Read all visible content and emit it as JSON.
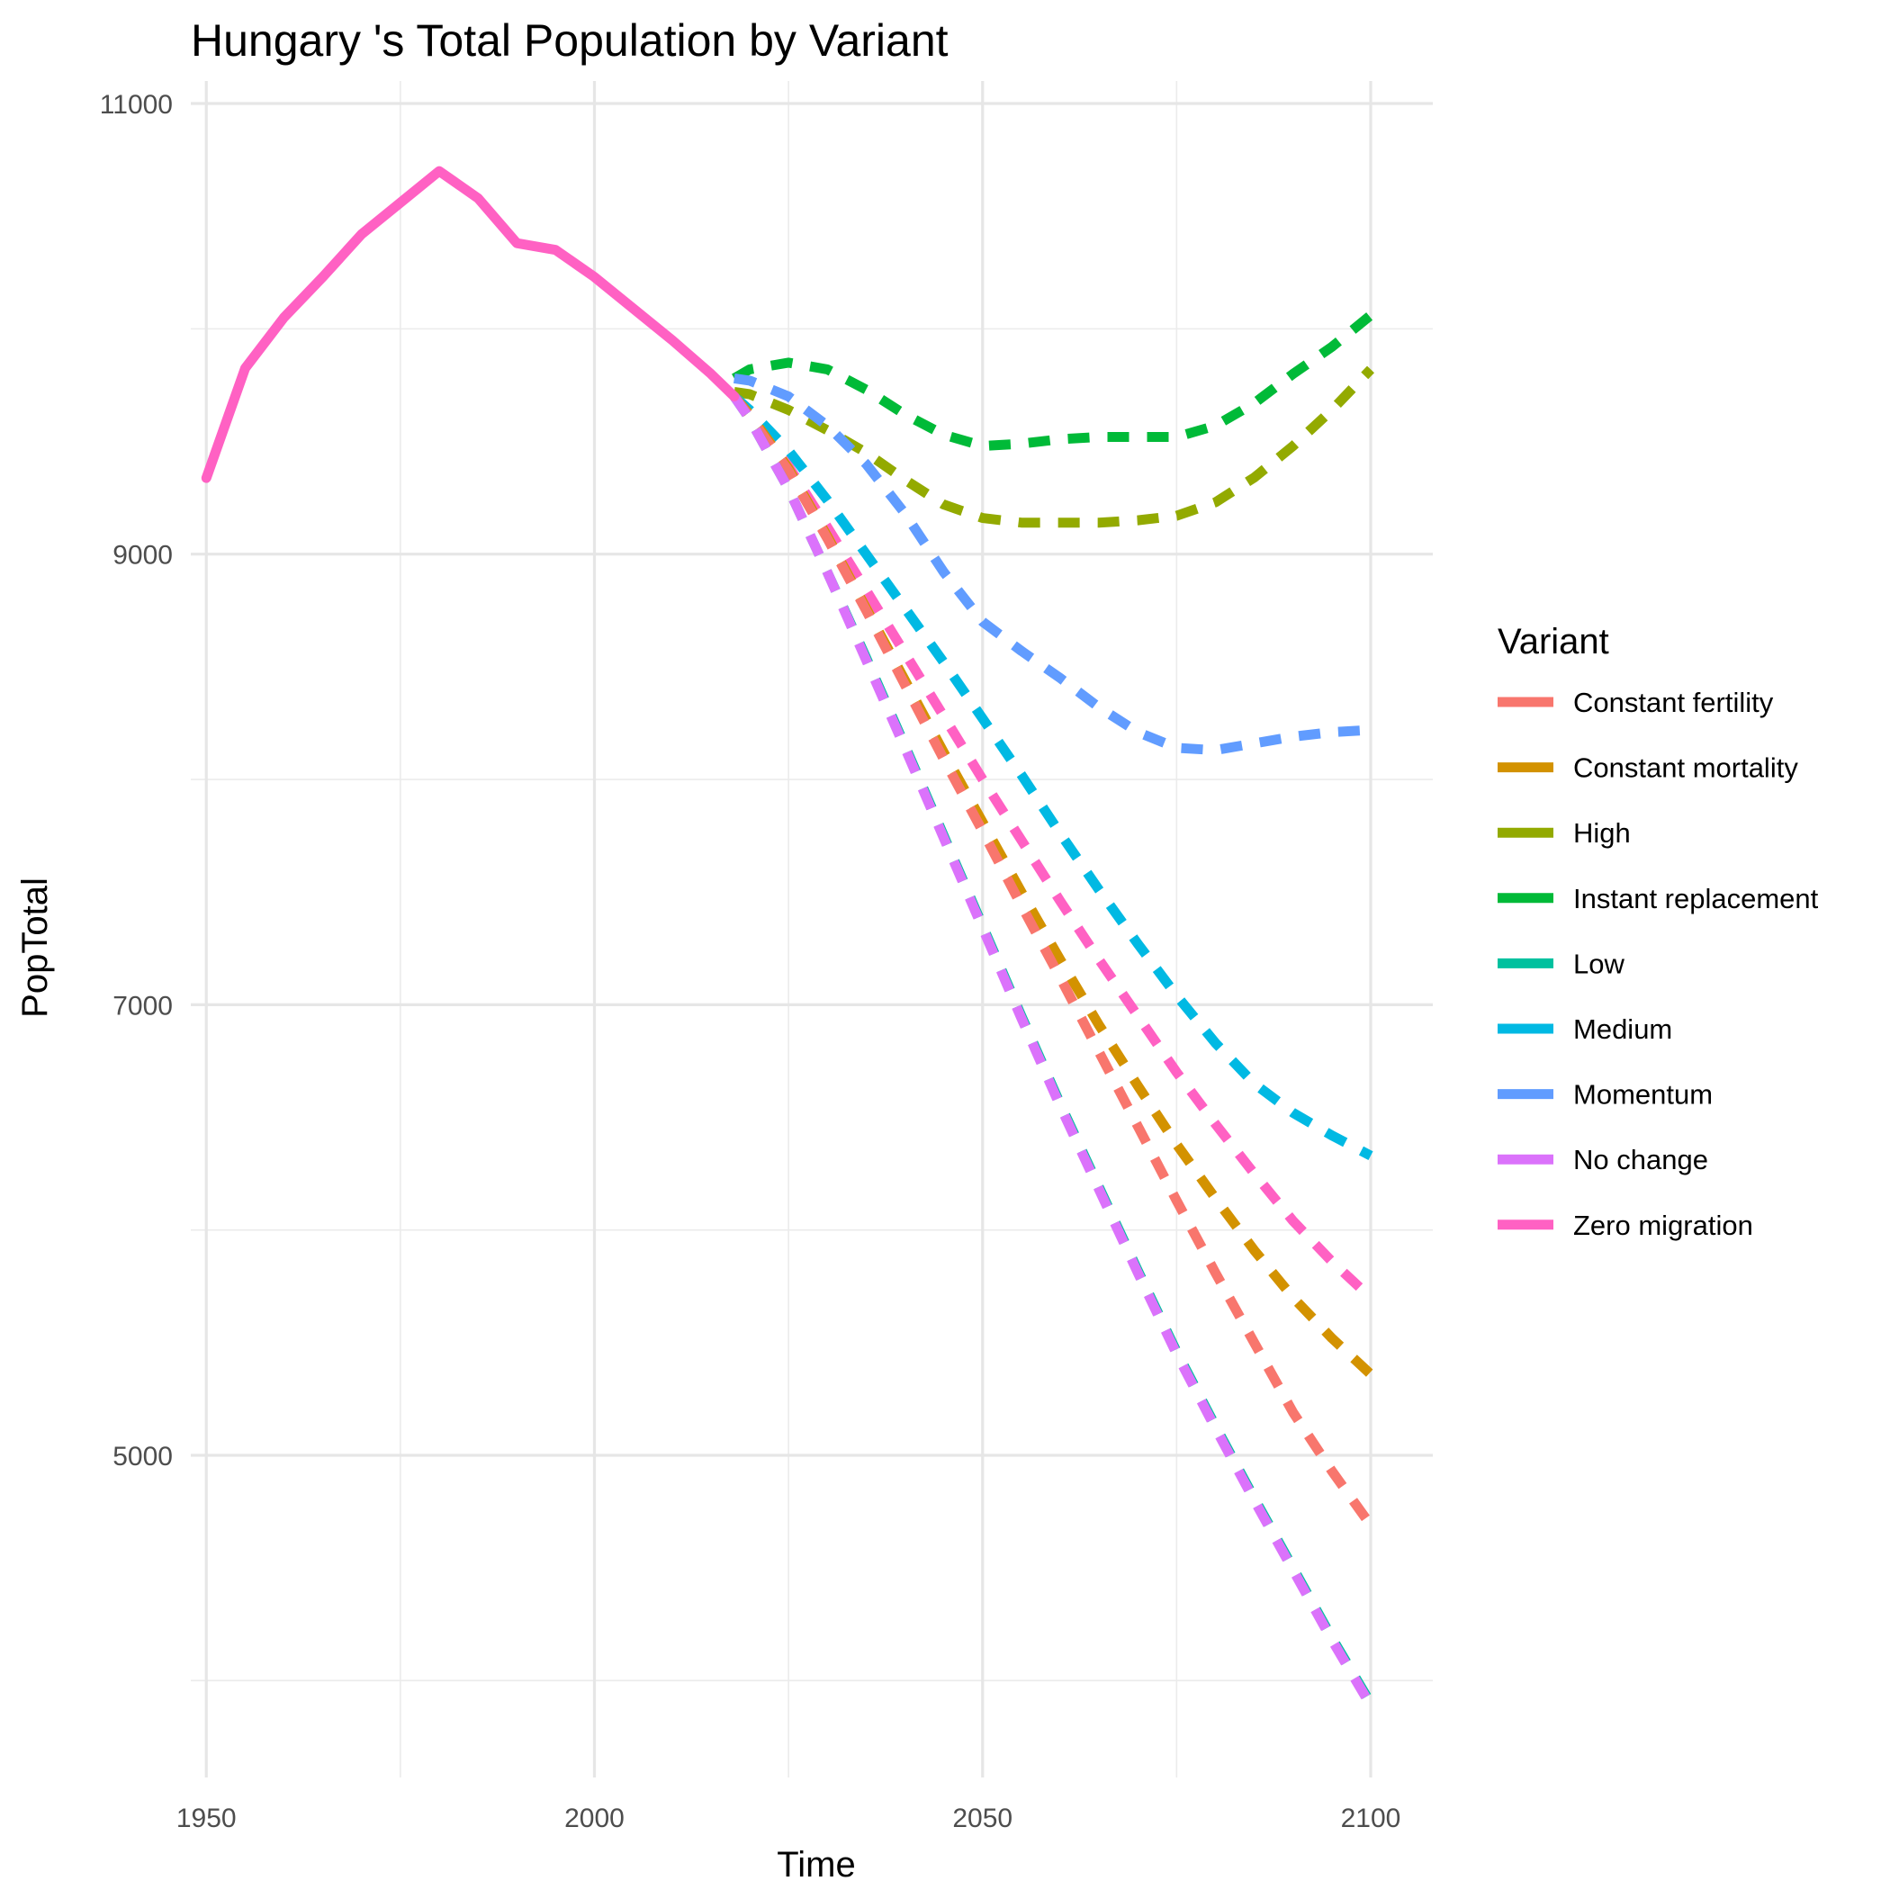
{
  "chart_data": {
    "type": "line",
    "title": "Hungary 's Total Population by Variant",
    "xlabel": "Time",
    "ylabel": "PopTotal",
    "xlim": [
      1948,
      2108
    ],
    "ylim": [
      3570,
      11100
    ],
    "x_ticks": [
      1950,
      2000,
      2050,
      2100
    ],
    "x_tick_labels": [
      "1950",
      "2000",
      "2050",
      "2100"
    ],
    "y_ticks": [
      5000,
      7000,
      9000,
      11000
    ],
    "y_tick_labels": [
      "5000",
      "7000",
      "9000",
      "11000"
    ],
    "y_minor_ticks": [
      4000,
      6000,
      8000,
      10000
    ],
    "x_minor_ticks": [
      1975,
      2025,
      2075
    ],
    "grid": true,
    "legend": {
      "title": "Variant",
      "position": "right",
      "entries": [
        {
          "label": "Constant fertility",
          "color": "#F8766D"
        },
        {
          "label": "Constant mortality",
          "color": "#D39200"
        },
        {
          "label": "High",
          "color": "#93AA00"
        },
        {
          "label": "Instant replacement",
          "color": "#00BA38"
        },
        {
          "label": "Low",
          "color": "#00C19F"
        },
        {
          "label": "Medium",
          "color": "#00B9E3"
        },
        {
          "label": "Momentum",
          "color": "#619CFF"
        },
        {
          "label": "No change",
          "color": "#DB72FB"
        },
        {
          "label": "Zero migration",
          "color": "#FF61C3"
        }
      ]
    },
    "series": [
      {
        "name": "Zero migration",
        "color": "#FF61C3",
        "style": "solid",
        "x": [
          1950,
          1955,
          1960,
          1965,
          1970,
          1975,
          1980,
          1985,
          1990,
          1995,
          2000,
          2005,
          2010,
          2015,
          2018
        ],
        "y": [
          9338,
          9825,
          10050,
          10230,
          10420,
          10560,
          10700,
          10580,
          10380,
          10350,
          10230,
          10090,
          9950,
          9800,
          9700
        ]
      },
      {
        "name": "Instant replacement",
        "color": "#00BA38",
        "style": "dashed",
        "x": [
          2018,
          2020,
          2025,
          2030,
          2035,
          2040,
          2045,
          2050,
          2055,
          2060,
          2065,
          2070,
          2075,
          2080,
          2085,
          2090,
          2095,
          2100
        ],
        "y": [
          9780,
          9820,
          9850,
          9820,
          9730,
          9620,
          9530,
          9480,
          9490,
          9510,
          9520,
          9520,
          9520,
          9570,
          9670,
          9800,
          9920,
          10060
        ]
      },
      {
        "name": "High",
        "color": "#93AA00",
        "style": "dashed",
        "x": [
          2018,
          2020,
          2025,
          2030,
          2035,
          2040,
          2045,
          2050,
          2055,
          2060,
          2065,
          2070,
          2075,
          2080,
          2085,
          2090,
          2095,
          2100
        ],
        "y": [
          9720,
          9710,
          9640,
          9550,
          9450,
          9330,
          9220,
          9160,
          9140,
          9140,
          9140,
          9150,
          9170,
          9230,
          9340,
          9480,
          9640,
          9820
        ]
      },
      {
        "name": "Momentum",
        "color": "#619CFF",
        "style": "dashed",
        "x": [
          2018,
          2020,
          2025,
          2030,
          2035,
          2040,
          2045,
          2050,
          2055,
          2060,
          2065,
          2070,
          2075,
          2080,
          2085,
          2090,
          2095,
          2100
        ],
        "y": [
          9780,
          9770,
          9700,
          9570,
          9400,
          9180,
          8920,
          8700,
          8570,
          8450,
          8320,
          8210,
          8140,
          8130,
          8160,
          8190,
          8210,
          8220
        ]
      },
      {
        "name": "Medium",
        "color": "#00B9E3",
        "style": "dashed",
        "x": [
          2018,
          2020,
          2025,
          2030,
          2035,
          2040,
          2045,
          2050,
          2055,
          2060,
          2065,
          2070,
          2075,
          2080,
          2085,
          2090,
          2095,
          2100
        ],
        "y": [
          9700,
          9640,
          9460,
          9240,
          9000,
          8760,
          8520,
          8270,
          8020,
          7760,
          7510,
          7270,
          7040,
          6830,
          6650,
          6520,
          6420,
          6330
        ]
      },
      {
        "name": "Zero migration",
        "color": "#FF61C3",
        "style": "dashed",
        "x": [
          2018,
          2020,
          2025,
          2030,
          2035,
          2040,
          2045,
          2050,
          2055,
          2060,
          2065,
          2070,
          2075,
          2080,
          2085,
          2090,
          2095,
          2100
        ],
        "y": [
          9700,
          9610,
          9390,
          9120,
          8840,
          8560,
          8280,
          8000,
          7730,
          7460,
          7200,
          6950,
          6700,
          6470,
          6250,
          6040,
          5860,
          5700
        ]
      },
      {
        "name": "Constant mortality",
        "color": "#D39200",
        "style": "dashed",
        "x": [
          2018,
          2020,
          2025,
          2030,
          2035,
          2040,
          2045,
          2050,
          2055,
          2060,
          2065,
          2070,
          2075,
          2080,
          2085,
          2090,
          2095,
          2100
        ],
        "y": [
          9700,
          9620,
          9380,
          9080,
          8760,
          8440,
          8120,
          7810,
          7500,
          7200,
          6910,
          6640,
          6380,
          6140,
          5910,
          5700,
          5520,
          5360
        ]
      },
      {
        "name": "Constant fertility",
        "color": "#F8766D",
        "style": "dashed",
        "x": [
          2018,
          2020,
          2025,
          2030,
          2035,
          2040,
          2045,
          2050,
          2055,
          2060,
          2065,
          2070,
          2075,
          2080,
          2085,
          2090,
          2095,
          2100
        ],
        "y": [
          9700,
          9610,
          9370,
          9070,
          8750,
          8420,
          8090,
          7770,
          7440,
          7120,
          6790,
          6460,
          6130,
          5810,
          5500,
          5190,
          4930,
          4690
        ]
      },
      {
        "name": "Low",
        "color": "#00C19F",
        "style": "dashed",
        "x": [
          2018,
          2020,
          2025,
          2030,
          2035,
          2040,
          2045,
          2050,
          2055,
          2060,
          2065,
          2070,
          2075,
          2080,
          2085,
          2090,
          2095,
          2100
        ],
        "y": [
          9700,
          9600,
          9290,
          8920,
          8540,
          8150,
          7750,
          7350,
          6950,
          6560,
          6190,
          5820,
          5460,
          5130,
          4810,
          4500,
          4190,
          3900
        ]
      },
      {
        "name": "No change",
        "color": "#DB72FB",
        "style": "dashed",
        "x": [
          2018,
          2020,
          2025,
          2030,
          2035,
          2040,
          2045,
          2050,
          2055,
          2060,
          2065,
          2070,
          2075,
          2080,
          2085,
          2090,
          2095,
          2100
        ],
        "y": [
          9700,
          9600,
          9290,
          8920,
          8530,
          8140,
          7740,
          7340,
          6940,
          6550,
          6180,
          5810,
          5450,
          5120,
          4800,
          4490,
          4180,
          3890
        ]
      }
    ]
  }
}
